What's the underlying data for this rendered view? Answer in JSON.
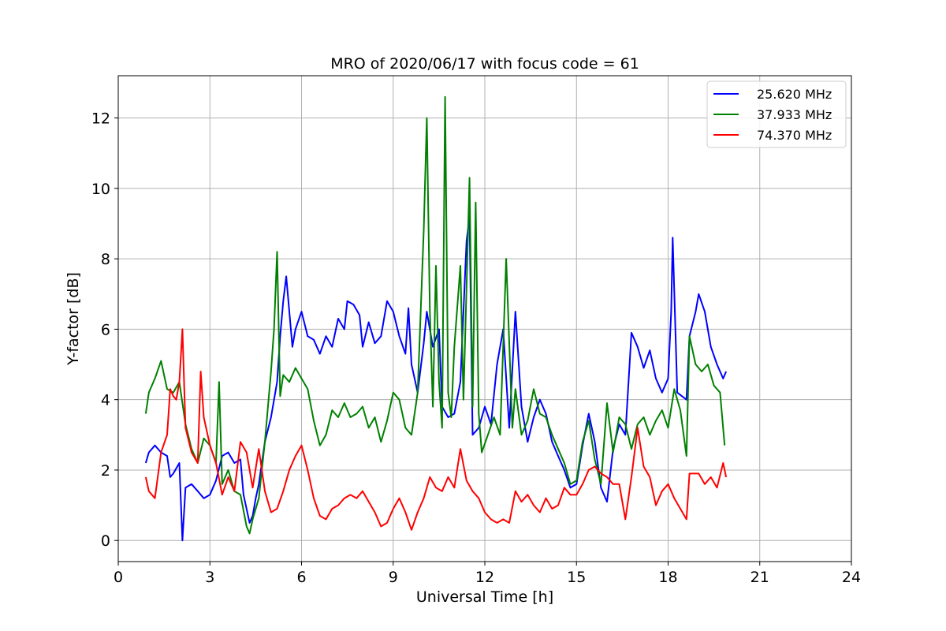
{
  "chart_data": {
    "type": "line",
    "title": "MRO of 2020/06/17 with focus code = 61",
    "xlabel": "Universal Time [h]",
    "ylabel": "Y-factor [dB]",
    "xlim": [
      0,
      24
    ],
    "ylim": [
      -0.6,
      13.2
    ],
    "x_ticks": [
      0,
      3,
      6,
      9,
      12,
      15,
      18,
      21,
      24
    ],
    "y_ticks": [
      0,
      2,
      4,
      6,
      8,
      10,
      12
    ],
    "grid": true,
    "legend_position": "top-right",
    "series": [
      {
        "name": "25.620 MHz",
        "color": "#0000ff",
        "points": [
          [
            0.9,
            2.2
          ],
          [
            1.0,
            2.5
          ],
          [
            1.2,
            2.7
          ],
          [
            1.4,
            2.5
          ],
          [
            1.6,
            2.4
          ],
          [
            1.7,
            1.8
          ],
          [
            1.8,
            1.9
          ],
          [
            2.0,
            2.2
          ],
          [
            2.1,
            0.0
          ],
          [
            2.2,
            1.5
          ],
          [
            2.4,
            1.6
          ],
          [
            2.6,
            1.4
          ],
          [
            2.8,
            1.2
          ],
          [
            3.0,
            1.3
          ],
          [
            3.2,
            1.7
          ],
          [
            3.4,
            2.4
          ],
          [
            3.6,
            2.5
          ],
          [
            3.8,
            2.2
          ],
          [
            4.0,
            2.3
          ],
          [
            4.1,
            1.3
          ],
          [
            4.3,
            0.5
          ],
          [
            4.4,
            0.7
          ],
          [
            4.5,
            1.2
          ],
          [
            4.6,
            1.6
          ],
          [
            4.8,
            2.8
          ],
          [
            5.0,
            3.5
          ],
          [
            5.2,
            4.5
          ],
          [
            5.3,
            5.8
          ],
          [
            5.4,
            6.8
          ],
          [
            5.5,
            7.5
          ],
          [
            5.7,
            5.5
          ],
          [
            5.8,
            6.0
          ],
          [
            6.0,
            6.5
          ],
          [
            6.2,
            5.8
          ],
          [
            6.4,
            5.7
          ],
          [
            6.6,
            5.3
          ],
          [
            6.8,
            5.8
          ],
          [
            7.0,
            5.5
          ],
          [
            7.2,
            6.3
          ],
          [
            7.4,
            6.0
          ],
          [
            7.5,
            6.8
          ],
          [
            7.7,
            6.7
          ],
          [
            7.9,
            6.4
          ],
          [
            8.0,
            5.5
          ],
          [
            8.2,
            6.2
          ],
          [
            8.4,
            5.6
          ],
          [
            8.6,
            5.8
          ],
          [
            8.8,
            6.8
          ],
          [
            9.0,
            6.5
          ],
          [
            9.2,
            5.8
          ],
          [
            9.4,
            5.3
          ],
          [
            9.5,
            6.6
          ],
          [
            9.6,
            5.0
          ],
          [
            9.8,
            4.2
          ],
          [
            10.0,
            5.6
          ],
          [
            10.1,
            6.5
          ],
          [
            10.3,
            5.5
          ],
          [
            10.5,
            6.0
          ],
          [
            10.6,
            3.8
          ],
          [
            10.8,
            3.5
          ],
          [
            11.0,
            3.6
          ],
          [
            11.2,
            4.5
          ],
          [
            11.4,
            8.5
          ],
          [
            11.5,
            9.2
          ],
          [
            11.6,
            3.0
          ],
          [
            11.8,
            3.2
          ],
          [
            12.0,
            3.8
          ],
          [
            12.2,
            3.3
          ],
          [
            12.4,
            5.0
          ],
          [
            12.6,
            6.0
          ],
          [
            12.8,
            3.2
          ],
          [
            13.0,
            6.5
          ],
          [
            13.2,
            3.8
          ],
          [
            13.4,
            2.8
          ],
          [
            13.6,
            3.5
          ],
          [
            13.8,
            4.0
          ],
          [
            14.0,
            3.6
          ],
          [
            14.2,
            2.8
          ],
          [
            14.4,
            2.4
          ],
          [
            14.6,
            2.0
          ],
          [
            14.8,
            1.5
          ],
          [
            15.0,
            1.6
          ],
          [
            15.2,
            2.7
          ],
          [
            15.4,
            3.6
          ],
          [
            15.6,
            2.8
          ],
          [
            15.8,
            1.5
          ],
          [
            16.0,
            1.1
          ],
          [
            16.2,
            2.6
          ],
          [
            16.4,
            3.3
          ],
          [
            16.6,
            3.0
          ],
          [
            16.8,
            5.9
          ],
          [
            17.0,
            5.5
          ],
          [
            17.2,
            4.9
          ],
          [
            17.4,
            5.4
          ],
          [
            17.6,
            4.6
          ],
          [
            17.8,
            4.2
          ],
          [
            18.0,
            4.6
          ],
          [
            18.1,
            6.5
          ],
          [
            18.15,
            8.6
          ],
          [
            18.3,
            4.2
          ],
          [
            18.6,
            4.0
          ],
          [
            18.7,
            5.8
          ],
          [
            18.9,
            6.5
          ],
          [
            19.0,
            7.0
          ],
          [
            19.2,
            6.5
          ],
          [
            19.4,
            5.5
          ],
          [
            19.6,
            5.0
          ],
          [
            19.8,
            4.6
          ],
          [
            19.9,
            4.8
          ]
        ]
      },
      {
        "name": "37.933 MHz",
        "color": "#008000",
        "points": [
          [
            0.9,
            3.6
          ],
          [
            1.0,
            4.2
          ],
          [
            1.2,
            4.6
          ],
          [
            1.4,
            5.1
          ],
          [
            1.5,
            4.7
          ],
          [
            1.6,
            4.3
          ],
          [
            1.8,
            4.2
          ],
          [
            2.0,
            4.5
          ],
          [
            2.2,
            3.3
          ],
          [
            2.4,
            2.6
          ],
          [
            2.6,
            2.2
          ],
          [
            2.8,
            2.9
          ],
          [
            3.0,
            2.7
          ],
          [
            3.2,
            2.2
          ],
          [
            3.3,
            4.5
          ],
          [
            3.4,
            1.6
          ],
          [
            3.6,
            2.0
          ],
          [
            3.8,
            1.4
          ],
          [
            4.0,
            1.3
          ],
          [
            4.2,
            0.4
          ],
          [
            4.3,
            0.2
          ],
          [
            4.4,
            0.6
          ],
          [
            4.6,
            1.2
          ],
          [
            4.8,
            2.8
          ],
          [
            5.0,
            4.8
          ],
          [
            5.1,
            6.0
          ],
          [
            5.2,
            8.2
          ],
          [
            5.3,
            4.1
          ],
          [
            5.4,
            4.7
          ],
          [
            5.6,
            4.5
          ],
          [
            5.8,
            4.9
          ],
          [
            6.0,
            4.6
          ],
          [
            6.2,
            4.3
          ],
          [
            6.4,
            3.4
          ],
          [
            6.6,
            2.7
          ],
          [
            6.8,
            3.0
          ],
          [
            7.0,
            3.7
          ],
          [
            7.2,
            3.5
          ],
          [
            7.4,
            3.9
          ],
          [
            7.6,
            3.5
          ],
          [
            7.8,
            3.6
          ],
          [
            8.0,
            3.8
          ],
          [
            8.2,
            3.2
          ],
          [
            8.4,
            3.5
          ],
          [
            8.6,
            2.8
          ],
          [
            8.8,
            3.4
          ],
          [
            9.0,
            4.2
          ],
          [
            9.2,
            4.0
          ],
          [
            9.4,
            3.2
          ],
          [
            9.6,
            3.0
          ],
          [
            9.8,
            4.2
          ],
          [
            10.0,
            8.8
          ],
          [
            10.1,
            12.0
          ],
          [
            10.2,
            6.5
          ],
          [
            10.3,
            3.8
          ],
          [
            10.4,
            7.8
          ],
          [
            10.5,
            4.5
          ],
          [
            10.6,
            3.2
          ],
          [
            10.7,
            12.6
          ],
          [
            10.8,
            4.2
          ],
          [
            10.9,
            3.5
          ],
          [
            11.0,
            5.5
          ],
          [
            11.2,
            7.8
          ],
          [
            11.3,
            4.0
          ],
          [
            11.5,
            10.3
          ],
          [
            11.6,
            3.8
          ],
          [
            11.7,
            9.6
          ],
          [
            11.8,
            3.6
          ],
          [
            11.9,
            2.5
          ],
          [
            12.1,
            3.0
          ],
          [
            12.3,
            3.5
          ],
          [
            12.5,
            3.0
          ],
          [
            12.7,
            8.0
          ],
          [
            12.9,
            3.2
          ],
          [
            13.0,
            4.3
          ],
          [
            13.2,
            3.0
          ],
          [
            13.4,
            3.4
          ],
          [
            13.6,
            4.3
          ],
          [
            13.8,
            3.6
          ],
          [
            14.0,
            3.5
          ],
          [
            14.2,
            3.0
          ],
          [
            14.4,
            2.6
          ],
          [
            14.6,
            2.2
          ],
          [
            14.8,
            1.6
          ],
          [
            15.0,
            1.7
          ],
          [
            15.2,
            2.8
          ],
          [
            15.4,
            3.4
          ],
          [
            15.6,
            2.3
          ],
          [
            15.8,
            1.6
          ],
          [
            16.0,
            3.9
          ],
          [
            16.2,
            2.5
          ],
          [
            16.4,
            3.5
          ],
          [
            16.6,
            3.3
          ],
          [
            16.8,
            2.6
          ],
          [
            17.0,
            3.3
          ],
          [
            17.2,
            3.5
          ],
          [
            17.4,
            3.0
          ],
          [
            17.6,
            3.4
          ],
          [
            17.8,
            3.7
          ],
          [
            18.0,
            3.2
          ],
          [
            18.2,
            4.3
          ],
          [
            18.4,
            3.7
          ],
          [
            18.6,
            2.4
          ],
          [
            18.7,
            5.8
          ],
          [
            18.9,
            5.0
          ],
          [
            19.1,
            4.8
          ],
          [
            19.3,
            5.0
          ],
          [
            19.5,
            4.4
          ],
          [
            19.7,
            4.2
          ],
          [
            19.85,
            2.7
          ]
        ]
      },
      {
        "name": "74.370 MHz",
        "color": "#ff0000",
        "points": [
          [
            0.9,
            1.8
          ],
          [
            1.0,
            1.4
          ],
          [
            1.2,
            1.2
          ],
          [
            1.4,
            2.5
          ],
          [
            1.6,
            3.0
          ],
          [
            1.7,
            4.3
          ],
          [
            1.8,
            4.1
          ],
          [
            1.9,
            4.0
          ],
          [
            2.0,
            4.5
          ],
          [
            2.1,
            6.0
          ],
          [
            2.2,
            3.2
          ],
          [
            2.4,
            2.5
          ],
          [
            2.6,
            2.2
          ],
          [
            2.7,
            4.8
          ],
          [
            2.8,
            3.5
          ],
          [
            3.0,
            2.7
          ],
          [
            3.2,
            2.2
          ],
          [
            3.4,
            1.3
          ],
          [
            3.6,
            1.8
          ],
          [
            3.8,
            1.4
          ],
          [
            4.0,
            2.8
          ],
          [
            4.2,
            2.5
          ],
          [
            4.4,
            1.5
          ],
          [
            4.6,
            2.6
          ],
          [
            4.8,
            1.4
          ],
          [
            5.0,
            0.8
          ],
          [
            5.2,
            0.9
          ],
          [
            5.4,
            1.4
          ],
          [
            5.6,
            2.0
          ],
          [
            5.8,
            2.4
          ],
          [
            6.0,
            2.7
          ],
          [
            6.2,
            2.0
          ],
          [
            6.4,
            1.2
          ],
          [
            6.6,
            0.7
          ],
          [
            6.8,
            0.6
          ],
          [
            7.0,
            0.9
          ],
          [
            7.2,
            1.0
          ],
          [
            7.4,
            1.2
          ],
          [
            7.6,
            1.3
          ],
          [
            7.8,
            1.2
          ],
          [
            8.0,
            1.4
          ],
          [
            8.2,
            1.1
          ],
          [
            8.4,
            0.8
          ],
          [
            8.6,
            0.4
          ],
          [
            8.8,
            0.5
          ],
          [
            9.0,
            0.9
          ],
          [
            9.2,
            1.2
          ],
          [
            9.4,
            0.8
          ],
          [
            9.6,
            0.3
          ],
          [
            9.8,
            0.8
          ],
          [
            10.0,
            1.2
          ],
          [
            10.2,
            1.8
          ],
          [
            10.4,
            1.5
          ],
          [
            10.6,
            1.4
          ],
          [
            10.8,
            1.8
          ],
          [
            11.0,
            1.5
          ],
          [
            11.2,
            2.6
          ],
          [
            11.4,
            1.7
          ],
          [
            11.6,
            1.4
          ],
          [
            11.8,
            1.2
          ],
          [
            12.0,
            0.8
          ],
          [
            12.2,
            0.6
          ],
          [
            12.4,
            0.5
          ],
          [
            12.6,
            0.6
          ],
          [
            12.8,
            0.5
          ],
          [
            13.0,
            1.4
          ],
          [
            13.2,
            1.1
          ],
          [
            13.4,
            1.3
          ],
          [
            13.6,
            1.0
          ],
          [
            13.8,
            0.8
          ],
          [
            14.0,
            1.2
          ],
          [
            14.2,
            0.9
          ],
          [
            14.4,
            1.0
          ],
          [
            14.6,
            1.5
          ],
          [
            14.8,
            1.3
          ],
          [
            15.0,
            1.3
          ],
          [
            15.2,
            1.6
          ],
          [
            15.4,
            2.0
          ],
          [
            15.6,
            2.1
          ],
          [
            15.8,
            1.9
          ],
          [
            16.0,
            1.8
          ],
          [
            16.2,
            1.6
          ],
          [
            16.4,
            1.6
          ],
          [
            16.6,
            0.6
          ],
          [
            16.8,
            1.8
          ],
          [
            17.0,
            3.2
          ],
          [
            17.2,
            2.1
          ],
          [
            17.4,
            1.8
          ],
          [
            17.6,
            1.0
          ],
          [
            17.8,
            1.4
          ],
          [
            18.0,
            1.6
          ],
          [
            18.2,
            1.2
          ],
          [
            18.4,
            0.9
          ],
          [
            18.6,
            0.6
          ],
          [
            18.7,
            1.9
          ],
          [
            19.0,
            1.9
          ],
          [
            19.2,
            1.6
          ],
          [
            19.4,
            1.8
          ],
          [
            19.6,
            1.5
          ],
          [
            19.8,
            2.2
          ],
          [
            19.9,
            1.8
          ]
        ]
      }
    ]
  }
}
